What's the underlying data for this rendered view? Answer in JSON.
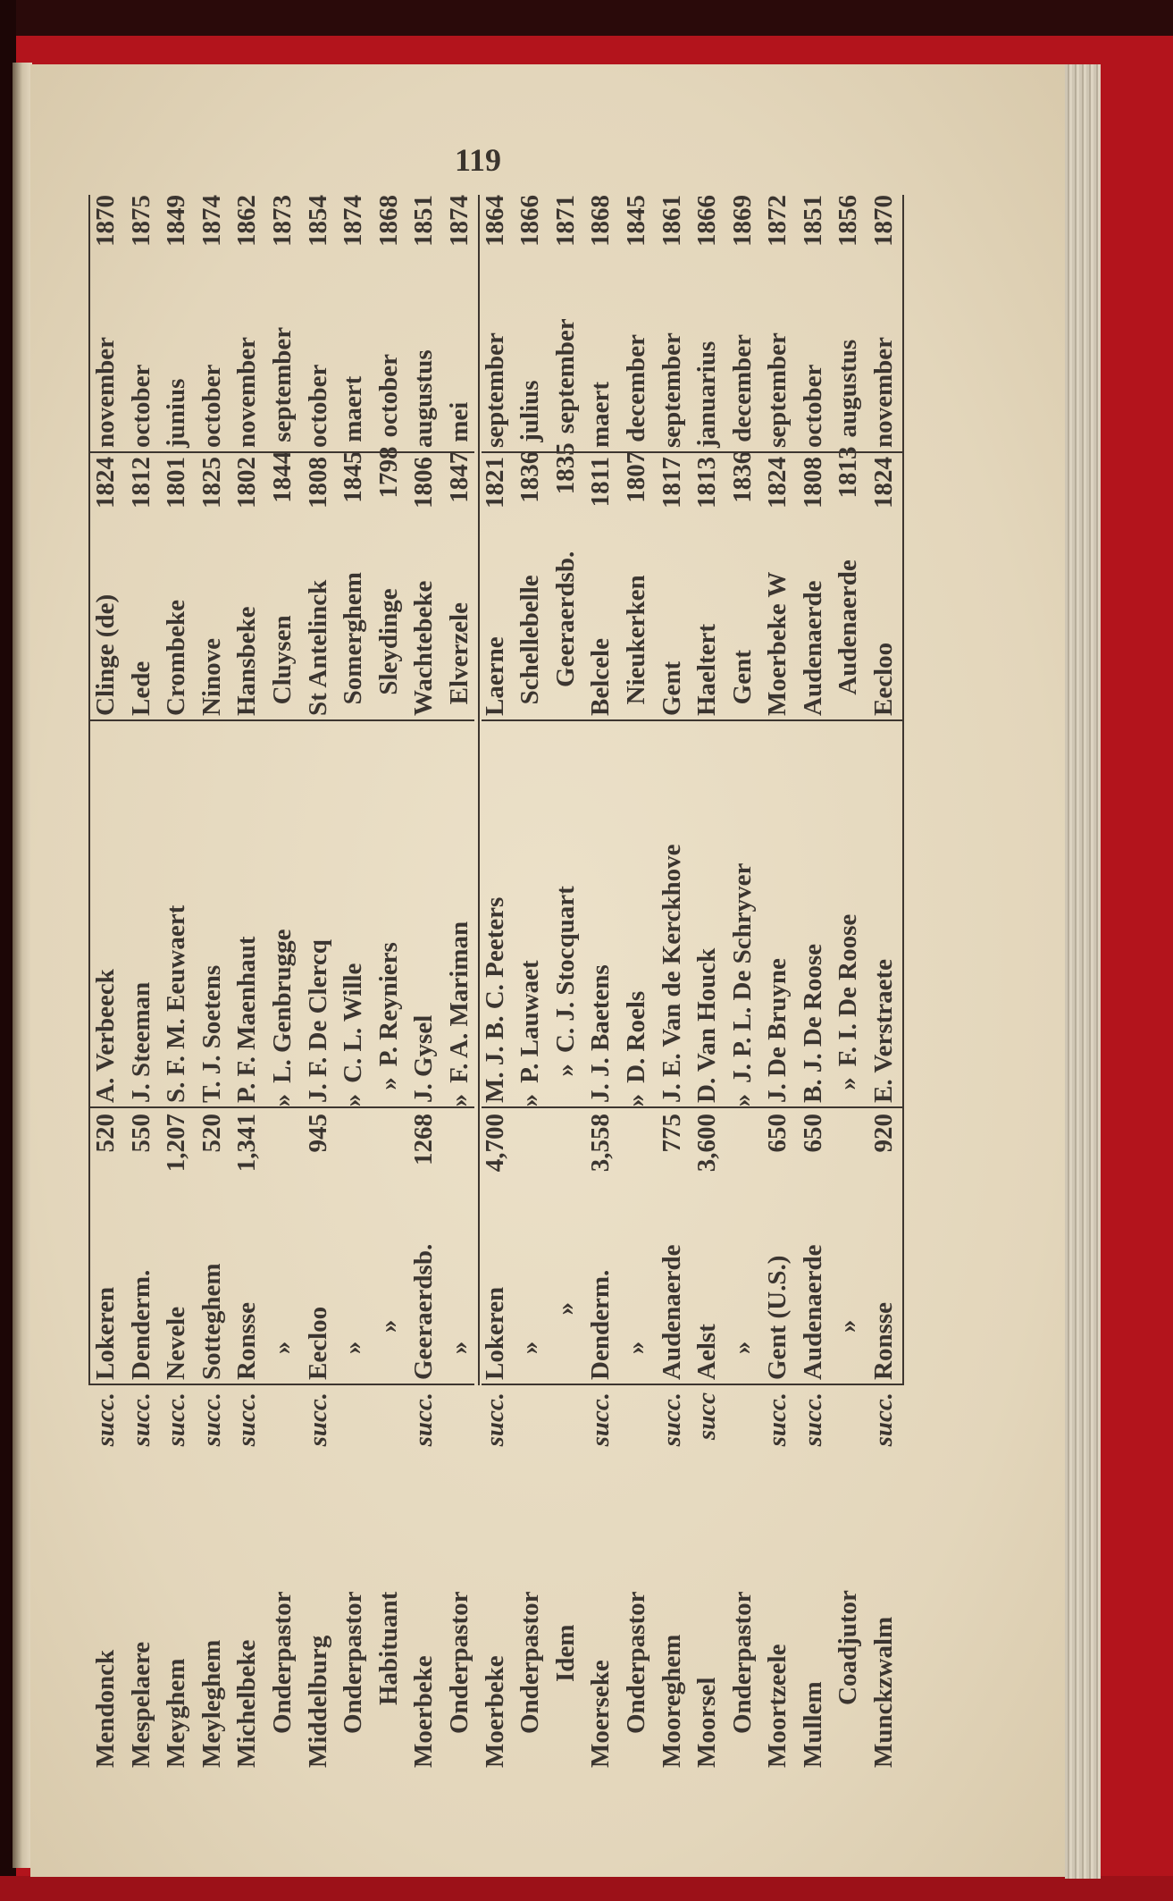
{
  "page_number": "119",
  "rows": [
    {
      "name": "Mendonck",
      "indent": 0,
      "succ": "succ.",
      "place": "Lokeren",
      "population": "520",
      "priest": "A. Verbeeck",
      "birthplace": "Clinge (de)",
      "birth_year": "1824",
      "month": "november",
      "year": "1870"
    },
    {
      "name": "Mespelaere",
      "indent": 0,
      "succ": "succ.",
      "place": "Denderm.",
      "population": "550",
      "priest": "J. Steeman",
      "birthplace": "Lede",
      "birth_year": "1812",
      "month": "october",
      "year": "1875"
    },
    {
      "name": "Meyghem",
      "indent": 0,
      "succ": "succ.",
      "place": "Nevele",
      "population": "1,207",
      "priest": "S. F. M. Eeuwaert",
      "birthplace": "Crombeke",
      "birth_year": "1801",
      "month": "junius",
      "year": "1849"
    },
    {
      "name": "Meyleghem",
      "indent": 0,
      "succ": "succ.",
      "place": "Sotteghem",
      "population": "520",
      "priest": "T. J. Soetens",
      "birthplace": "Ninove",
      "birth_year": "1825",
      "month": "october",
      "year": "1874"
    },
    {
      "name": "Michelbeke",
      "indent": 0,
      "succ": "succ.",
      "place": "Ronsse",
      "population": "1,341",
      "priest": "P. F. Maenhaut",
      "birthplace": "Hansbeke",
      "birth_year": "1802",
      "month": "november",
      "year": "1862"
    },
    {
      "name": "Onderpastor",
      "indent": 1,
      "succ": "",
      "place": "»",
      "population": "»",
      "priest": "L. Genbrugge",
      "birthplace": "Cluysen",
      "birth_year": "1844",
      "month": "september",
      "year": "1873"
    },
    {
      "name": "Middelburg",
      "indent": 0,
      "succ": "succ.",
      "place": "Eecloo",
      "population": "945",
      "priest": "J. F. De Clercq",
      "birthplace": "St Antelinck",
      "birth_year": "1808",
      "month": "october",
      "year": "1854"
    },
    {
      "name": "Onderpastor",
      "indent": 1,
      "succ": "",
      "place": "»",
      "population": "»",
      "priest": "C. L. Wille",
      "birthplace": "Somerghem",
      "birth_year": "1845",
      "month": "maert",
      "year": "1874"
    },
    {
      "name": "Habituant",
      "indent": 2,
      "succ": "",
      "place": "»",
      "population": "»",
      "priest": "P. Reyniers",
      "birthplace": "Sleydinge",
      "birth_year": "1798",
      "month": "october",
      "year": "1868"
    },
    {
      "name": "Moerbeke",
      "indent": 0,
      "succ": "succ.",
      "place": "Geeraerdsb.",
      "population": "1268",
      "priest": "J. Gysel",
      "birthplace": "Wachtebeke",
      "birth_year": "1806",
      "month": "augustus",
      "year": "1851"
    },
    {
      "name": "Onderpastor",
      "indent": 1,
      "succ": "",
      "place": "»",
      "population": "»",
      "priest": "F. A. Mariman",
      "birthplace": "Elverzele",
      "birth_year": "1847",
      "month": "mei",
      "year": "1874"
    },
    {
      "name": "Moerbeke",
      "indent": 0,
      "succ": "succ.",
      "place": "Lokeren",
      "population": "4,700",
      "priest": "M. J. B. C. Peeters",
      "birthplace": "Laerne",
      "birth_year": "1821",
      "month": "september",
      "year": "1864"
    },
    {
      "name": "Onderpastor",
      "indent": 1,
      "succ": "",
      "place": "»",
      "population": "»",
      "priest": "P. Lauwaet",
      "birthplace": "Schellebelle",
      "birth_year": "1836",
      "month": "julius",
      "year": "1866"
    },
    {
      "name": "Idem",
      "indent": 3,
      "succ": "",
      "place": "»",
      "population": "»",
      "priest": "C. J. Stocquart",
      "birthplace": "Geeraerdsb.",
      "birth_year": "1835",
      "month": "september",
      "year": "1871"
    },
    {
      "name": "Moerseke",
      "indent": 0,
      "succ": "succ.",
      "place": "Denderm.",
      "population": "3,558",
      "priest": "J. J. Baetens",
      "birthplace": "Belcele",
      "birth_year": "1811",
      "month": "maert",
      "year": "1868"
    },
    {
      "name": "Onderpastor",
      "indent": 1,
      "succ": "",
      "place": "»",
      "population": "»",
      "priest": "D. Roels",
      "birthplace": "Nieukerken",
      "birth_year": "1807",
      "month": "december",
      "year": "1845"
    },
    {
      "name": "Mooreghem",
      "indent": 0,
      "succ": "succ.",
      "place": "Audenaerde",
      "population": "775",
      "priest": "J. E. Van de Kerckhove",
      "birthplace": "Gent",
      "birth_year": "1817",
      "month": "september",
      "year": "1861"
    },
    {
      "name": "Moorsel",
      "indent": 0,
      "succ": "succ",
      "place": "Aelst",
      "population": "3,600",
      "priest": "D. Van Houck",
      "birthplace": "Haeltert",
      "birth_year": "1813",
      "month": "januarius",
      "year": "1866"
    },
    {
      "name": "Onderpastor",
      "indent": 1,
      "succ": "",
      "place": "»",
      "population": "»",
      "priest": "J. P. L. De Schryver",
      "birthplace": "Gent",
      "birth_year": "1836",
      "month": "december",
      "year": "1869"
    },
    {
      "name": "Moortzeele",
      "indent": 0,
      "succ": "succ.",
      "place": "Gent (U.S.)",
      "population": "650",
      "priest": "J. De Bruyne",
      "birthplace": "Moerbeke W",
      "birth_year": "1824",
      "month": "september",
      "year": "1872"
    },
    {
      "name": "Mullem",
      "indent": 0,
      "succ": "succ.",
      "place": "Audenaerde",
      "population": "650",
      "priest": "B. J. De Roose",
      "birthplace": "Audenaerde",
      "birth_year": "1808",
      "month": "october",
      "year": "1851"
    },
    {
      "name": "Coadjutor",
      "indent": 2,
      "succ": "",
      "place": "»",
      "population": "»",
      "priest": "F. I. De Roose",
      "birthplace": "Audenaerde",
      "birth_year": "1813",
      "month": "augustus",
      "year": "1856"
    },
    {
      "name": "Munckzwalm",
      "indent": 0,
      "succ": "succ.",
      "place": "Ronsse",
      "population": "920",
      "priest": "E. Verstraete",
      "birthplace": "Eecloo",
      "birth_year": "1824",
      "month": "november",
      "year": "1870"
    }
  ]
}
